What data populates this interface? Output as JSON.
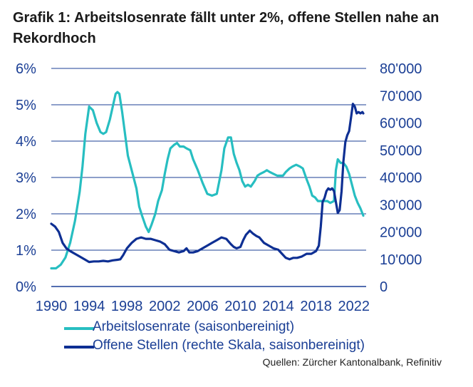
{
  "page": {
    "title": "Grafik 1: Arbeitslosenrate fällt unter 2%, offene Stellen nahe an Rekordhoch",
    "source": "Quellen: Zürcher Kantonalbank, Refinitiv"
  },
  "colors": {
    "unemployment": "#27bec1",
    "vacancies": "#0e2f93",
    "grid": "#1b3f95",
    "text": "#1b3f95"
  },
  "legend": [
    {
      "label": "Arbeitslosenrate (saisonbereinigt)",
      "color": "#27bec1"
    },
    {
      "label": "Offene Stellen (rechte Skala, saisonbereinigt)",
      "color": "#0e2f93"
    }
  ],
  "chart_data": {
    "type": "line",
    "title": "Grafik 1: Arbeitslosenrate fällt unter 2%, offene Stellen nahe an Rekordhoch",
    "x_ticks": [
      "1990",
      "1994",
      "1998",
      "2002",
      "2006",
      "2010",
      "2014",
      "2018",
      "2022"
    ],
    "xlim": [
      1990,
      2023.3
    ],
    "y_left": {
      "ticks": [
        "0%",
        "1%",
        "2%",
        "3%",
        "4%",
        "5%",
        "6%"
      ],
      "range": [
        0,
        6
      ]
    },
    "y_right": {
      "ticks": [
        "0",
        "10'000",
        "20'000",
        "30'000",
        "40'000",
        "50'000",
        "60'000",
        "70'000",
        "80'000"
      ],
      "range": [
        0,
        80000
      ]
    },
    "grid": true,
    "legend_position": "bottom-left",
    "series": [
      {
        "name": "Arbeitslosenrate (saisonbereinigt)",
        "axis": "left",
        "color": "#27bec1",
        "x": [
          1990.0,
          1990.5,
          1991.0,
          1991.5,
          1992.0,
          1992.5,
          1993.0,
          1993.3,
          1993.6,
          1994.0,
          1994.4,
          1994.8,
          1995.2,
          1995.5,
          1995.8,
          1996.2,
          1996.5,
          1996.8,
          1997.0,
          1997.2,
          1997.5,
          1997.8,
          1998.1,
          1998.4,
          1998.7,
          1999.0,
          1999.3,
          1999.6,
          2000.0,
          2000.3,
          2000.6,
          2001.0,
          2001.3,
          2001.7,
          2002.0,
          2002.3,
          2002.6,
          2003.0,
          2003.3,
          2003.6,
          2004.0,
          2004.3,
          2004.7,
          2005.0,
          2005.5,
          2006.0,
          2006.5,
          2007.0,
          2007.5,
          2008.0,
          2008.3,
          2008.7,
          2009.0,
          2009.3,
          2009.6,
          2009.9,
          2010.2,
          2010.5,
          2010.8,
          2011.1,
          2011.5,
          2011.8,
          2012.1,
          2012.5,
          2012.8,
          2013.1,
          2013.5,
          2013.9,
          2014.2,
          2014.5,
          2014.8,
          2015.2,
          2015.5,
          2015.9,
          2016.3,
          2016.6,
          2017.0,
          2017.3,
          2017.6,
          2017.9,
          2018.2,
          2018.5,
          2018.8,
          2019.2,
          2019.5,
          2019.9,
          2020.1,
          2020.3,
          2020.6,
          2020.9,
          2021.2,
          2021.5,
          2021.8,
          2022.1,
          2022.4,
          2022.7,
          2023.0
        ],
        "values": [
          0.5,
          0.5,
          0.6,
          0.8,
          1.2,
          1.8,
          2.6,
          3.3,
          4.2,
          4.95,
          4.85,
          4.5,
          4.25,
          4.2,
          4.25,
          4.6,
          4.95,
          5.3,
          5.35,
          5.3,
          4.8,
          4.2,
          3.6,
          3.3,
          3.0,
          2.7,
          2.2,
          1.95,
          1.65,
          1.5,
          1.7,
          2.0,
          2.35,
          2.65,
          3.1,
          3.5,
          3.8,
          3.9,
          3.95,
          3.85,
          3.85,
          3.8,
          3.75,
          3.5,
          3.2,
          2.85,
          2.55,
          2.5,
          2.55,
          3.2,
          3.8,
          4.1,
          4.1,
          3.65,
          3.4,
          3.2,
          2.9,
          2.75,
          2.8,
          2.75,
          2.9,
          3.05,
          3.1,
          3.15,
          3.2,
          3.15,
          3.1,
          3.05,
          3.05,
          3.05,
          3.15,
          3.25,
          3.3,
          3.35,
          3.3,
          3.25,
          2.95,
          2.75,
          2.5,
          2.45,
          2.35,
          2.35,
          2.35,
          2.35,
          2.3,
          2.35,
          3.2,
          3.5,
          3.4,
          3.4,
          3.3,
          3.1,
          2.8,
          2.5,
          2.3,
          2.15,
          1.95
        ]
      },
      {
        "name": "Offene Stellen (rechte Skala, saisonbereinigt)",
        "axis": "right",
        "color": "#0e2f93",
        "x": [
          1990.0,
          1990.4,
          1990.8,
          1991.2,
          1991.6,
          1992.0,
          1992.5,
          1993.0,
          1993.5,
          1994.0,
          1994.5,
          1995.0,
          1995.5,
          1996.0,
          1996.5,
          1997.0,
          1997.3,
          1997.6,
          1998.0,
          1998.5,
          1999.0,
          1999.5,
          2000.0,
          2000.5,
          2001.0,
          2001.5,
          2002.0,
          2002.5,
          2003.0,
          2003.5,
          2004.0,
          2004.3,
          2004.6,
          2005.0,
          2005.5,
          2006.0,
          2006.5,
          2007.0,
          2007.5,
          2008.0,
          2008.5,
          2009.0,
          2009.3,
          2009.6,
          2010.0,
          2010.3,
          2010.6,
          2011.0,
          2011.3,
          2011.7,
          2012.0,
          2012.5,
          2013.0,
          2013.5,
          2014.0,
          2014.4,
          2014.8,
          2015.2,
          2015.6,
          2016.0,
          2016.5,
          2017.0,
          2017.5,
          2018.0,
          2018.3,
          2018.5,
          2018.7,
          2018.9,
          2019.1,
          2019.3,
          2019.5,
          2019.7,
          2019.9,
          2020.1,
          2020.3,
          2020.5,
          2020.7,
          2020.9,
          2021.1,
          2021.3,
          2021.5,
          2021.7,
          2021.9,
          2022.1,
          2022.3,
          2022.5,
          2022.7,
          2022.9,
          2023.0
        ],
        "values": [
          23000,
          22000,
          20000,
          16000,
          14000,
          13000,
          12000,
          11000,
          10000,
          9000,
          9200,
          9200,
          9400,
          9200,
          9600,
          9800,
          10000,
          11500,
          14000,
          16000,
          17500,
          18000,
          17500,
          17500,
          17000,
          16500,
          15500,
          13500,
          13000,
          12500,
          13000,
          14000,
          12500,
          12500,
          13000,
          14000,
          15000,
          16000,
          17000,
          18000,
          17500,
          15500,
          14500,
          14000,
          14500,
          17000,
          19000,
          20500,
          19500,
          18500,
          18000,
          16000,
          15000,
          14000,
          13500,
          12000,
          10500,
          10000,
          10500,
          10500,
          11000,
          12000,
          12000,
          13000,
          15000,
          22000,
          31000,
          32500,
          35000,
          36000,
          35500,
          36000,
          35000,
          31000,
          27000,
          28000,
          35000,
          46000,
          53000,
          55500,
          57000,
          62000,
          67000,
          66000,
          63500,
          64000,
          63500,
          64000,
          63500
        ]
      }
    ]
  }
}
